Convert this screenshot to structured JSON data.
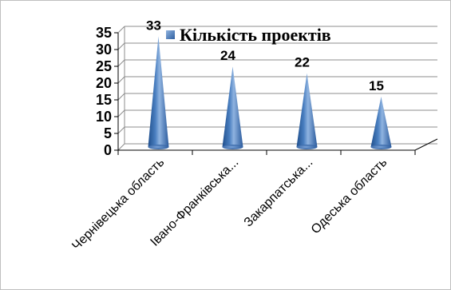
{
  "chart_data": {
    "type": "bar",
    "categories": [
      "Чернівецька область",
      "Івано-Франківська...",
      "Закарпатська...",
      "Одеська область"
    ],
    "series": [
      {
        "name": "Кількість проектів",
        "values": [
          33,
          24,
          22,
          15
        ],
        "color": "#4f81bd"
      }
    ],
    "y_ticks": [
      "0",
      "5",
      "10",
      "15",
      "20",
      "25",
      "30",
      "35"
    ],
    "ylim": [
      0,
      35
    ],
    "grid": true,
    "legend_position": "top-right",
    "bar_shape": "cone"
  }
}
